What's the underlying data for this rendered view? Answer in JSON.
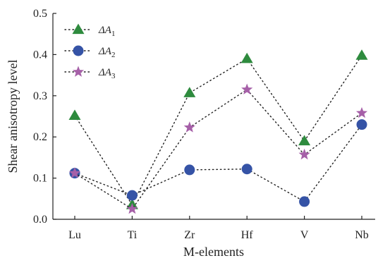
{
  "chart_data": {
    "type": "line",
    "categories": [
      "Lu",
      "Ti",
      "Zr",
      "Hf",
      "V",
      "Nb"
    ],
    "xlabel": "M-elements",
    "ylabel": "Shear anisotropy level",
    "ylim": [
      0,
      0.5
    ],
    "yticks": [
      "0.0",
      "0.1",
      "0.2",
      "0.3",
      "0.4",
      "0.5"
    ],
    "legend_position": "top-left",
    "grid": false,
    "series": [
      {
        "name": "ΔA",
        "subscript": "1",
        "marker": "triangle",
        "color": "#2e8b3e",
        "values": [
          0.252,
          0.035,
          0.307,
          0.39,
          0.19,
          0.398
        ]
      },
      {
        "name": "ΔA",
        "subscript": "2",
        "marker": "circle",
        "color": "#3553a6",
        "values": [
          0.112,
          0.058,
          0.12,
          0.122,
          0.043,
          0.23
        ]
      },
      {
        "name": "ΔA",
        "subscript": "3",
        "marker": "star",
        "color": "#a660a8",
        "values": [
          0.112,
          0.025,
          0.223,
          0.315,
          0.157,
          0.258
        ]
      }
    ]
  }
}
